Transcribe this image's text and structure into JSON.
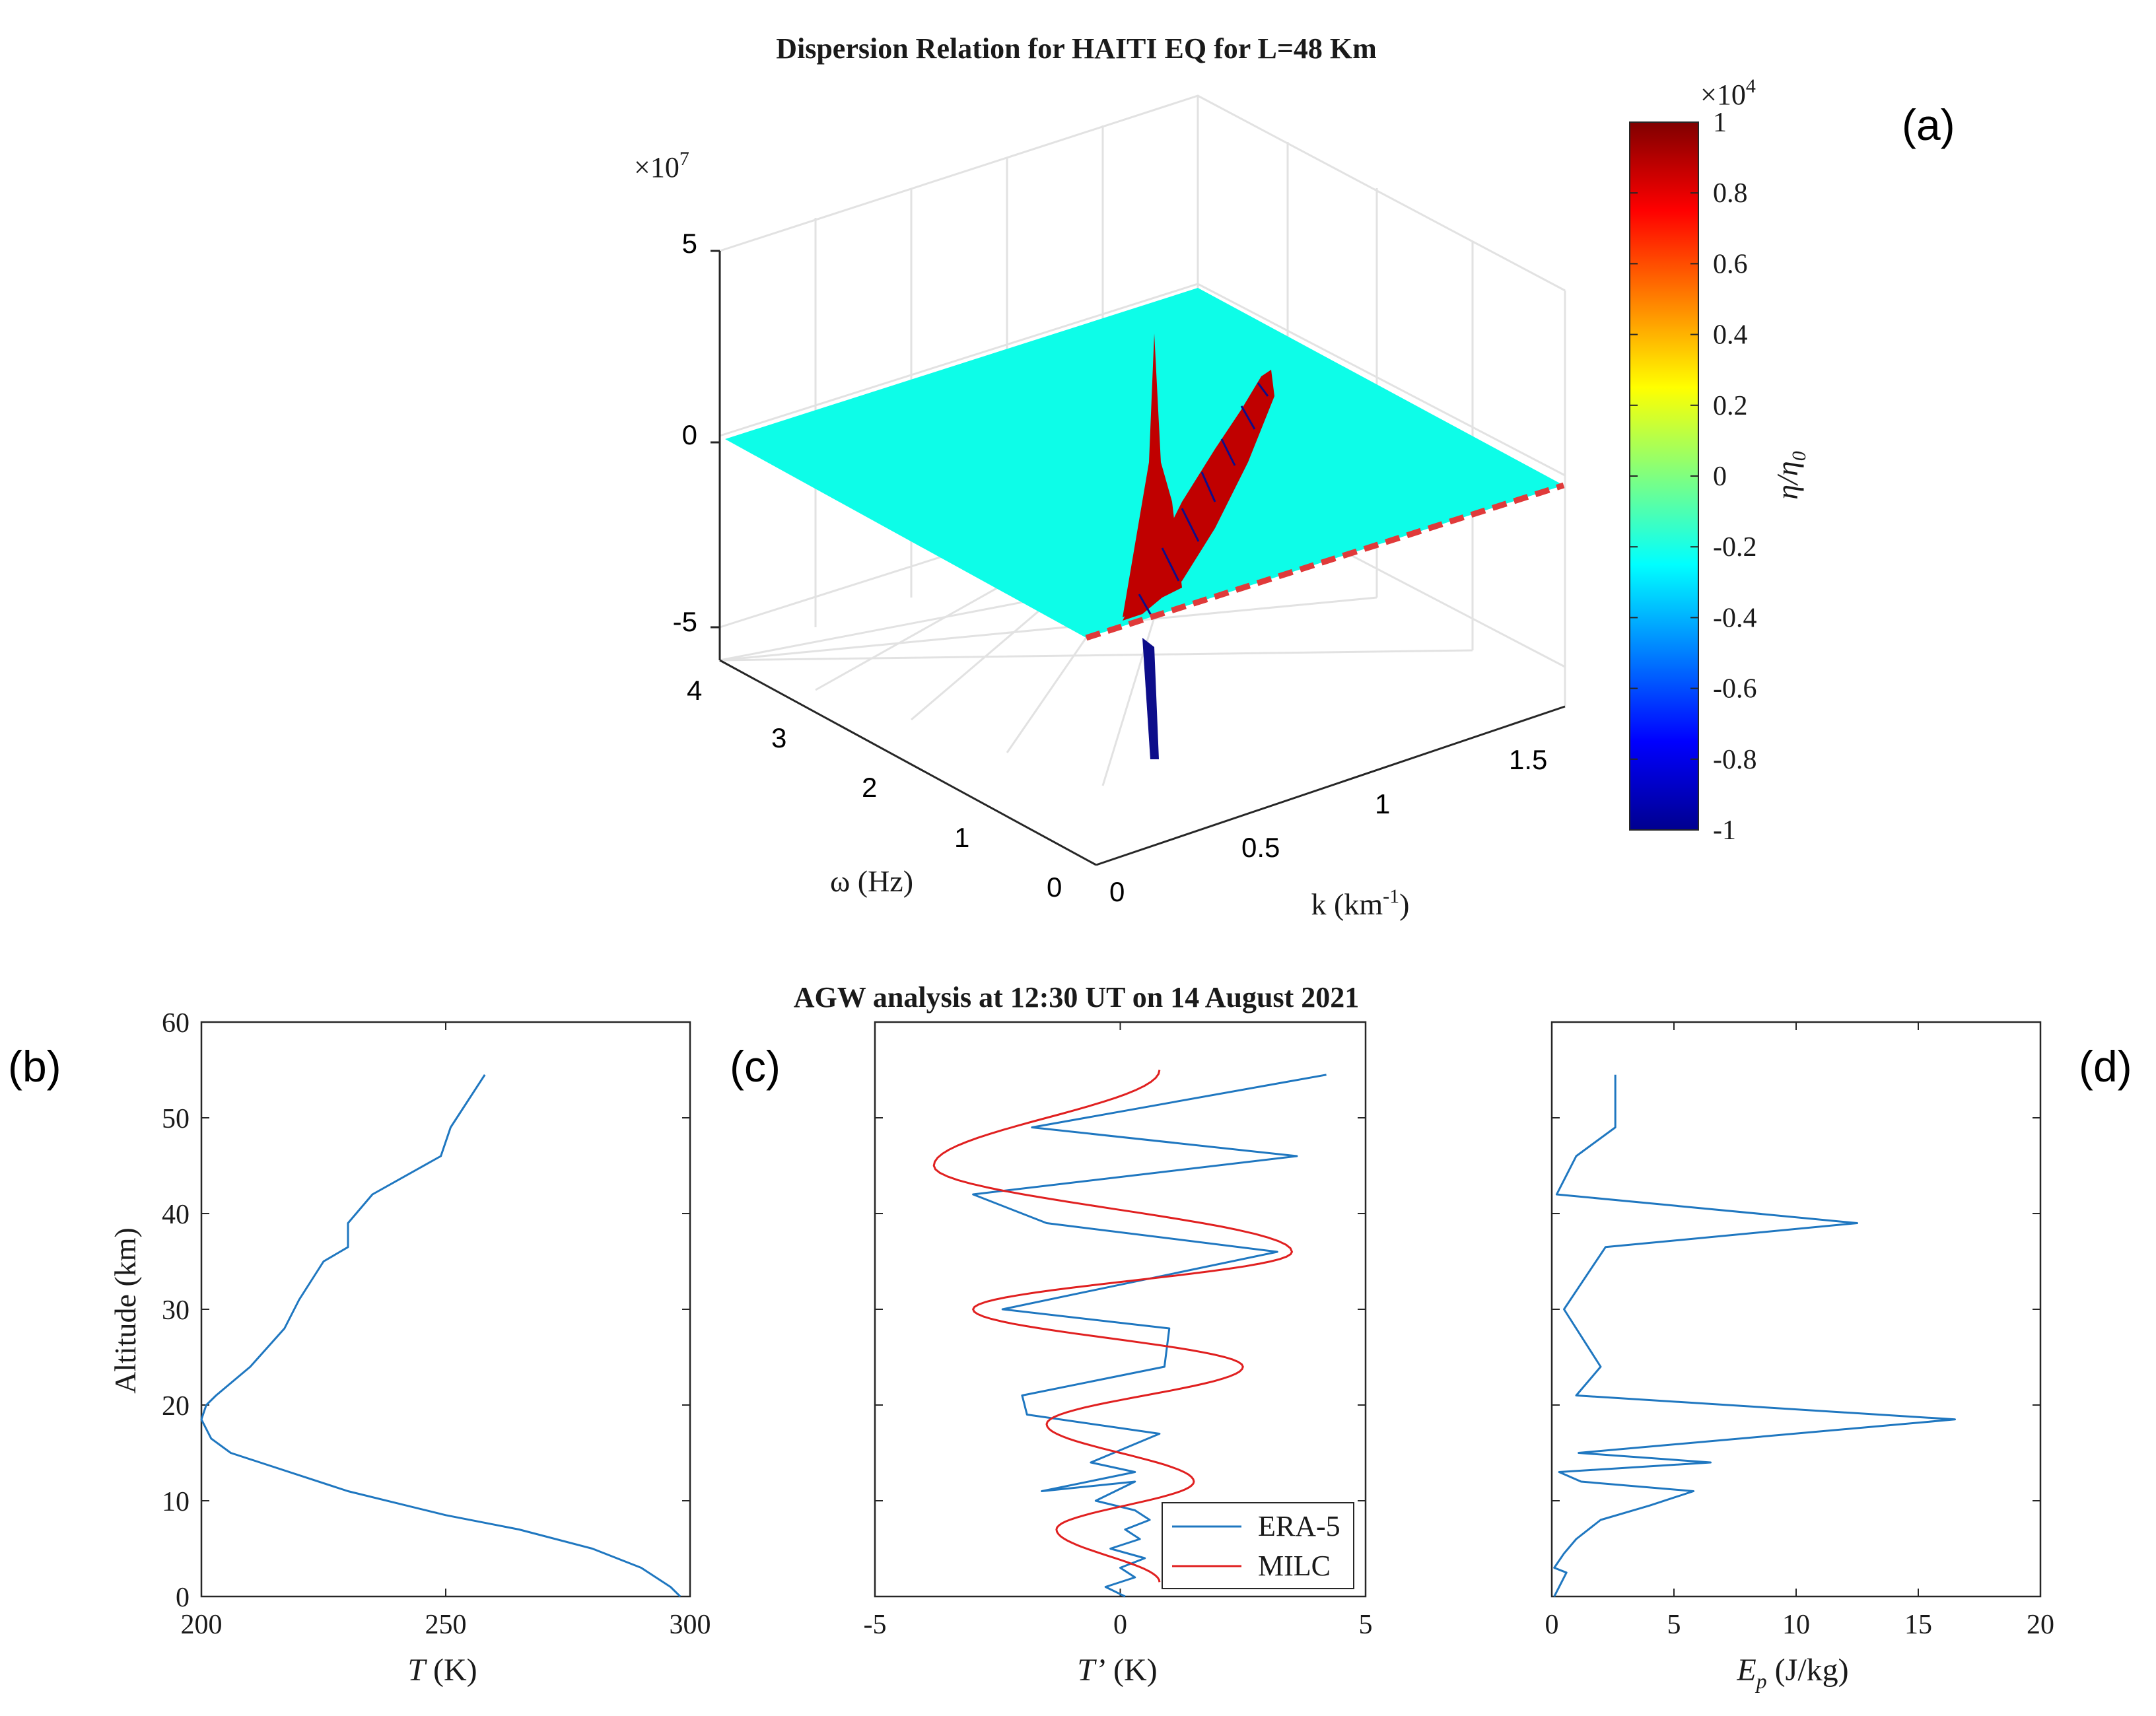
{
  "chart_data": [
    {
      "id": "a",
      "panel_label": "(a)",
      "type": "surface3d",
      "title": "Dispersion Relation for HAITI EQ for L=48 Km",
      "z_multiplier": "×10",
      "z_multiplier_exp": "7",
      "z_ticks": [
        "5",
        "0",
        "-5"
      ],
      "zlim": [
        -5,
        5
      ],
      "omega_ticks": [
        "4",
        "3",
        "2",
        "1",
        "0"
      ],
      "omega_label": "ω (Hz)",
      "omega_lim": [
        0,
        4
      ],
      "k_ticks": [
        "0",
        "0.5",
        "1",
        "1.5"
      ],
      "k_label_main": "k (km",
      "k_label_exp": "-1",
      "k_label_close": ")",
      "k_lim": [
        0,
        1.8
      ],
      "surface_color": "#0dfde8",
      "red_color": "#c00000",
      "dark_color": "#0d0d8a",
      "dashed_line_color": "#e03a3a",
      "colorbar": {
        "multiplier": "×10",
        "multiplier_exp": "4",
        "ticks": [
          "1",
          "0.8",
          "0.6",
          "0.4",
          "0.2",
          "0",
          "-0.2",
          "-0.4",
          "-0.6",
          "-0.8",
          "-1"
        ],
        "label_main": "η/η",
        "label_sub": "0",
        "range": [
          -1,
          1
        ]
      }
    },
    {
      "id": "b",
      "panel_label": "(b)",
      "type": "line",
      "suptitle": "AGW analysis at 12:30 UT on 14 August 2021",
      "xlabel_main": "T",
      "xlabel_unit": "(K)",
      "ylabel": "Altitude (km)",
      "xlim": [
        200,
        300
      ],
      "ylim": [
        0,
        60
      ],
      "xticks": [
        "200",
        "250",
        "300"
      ],
      "yticks": [
        "0",
        "10",
        "20",
        "30",
        "40",
        "50",
        "60"
      ],
      "series": [
        {
          "name": "T",
          "color": "#1f77c0",
          "x": [
            298,
            296,
            290,
            280,
            265,
            250,
            230,
            212,
            206,
            202,
            200,
            201,
            203,
            210,
            217,
            220,
            225,
            230,
            230,
            235,
            249,
            251,
            258
          ],
          "y": [
            0,
            1,
            3,
            5,
            7,
            8.5,
            11,
            14,
            15,
            16.5,
            18.5,
            20,
            21,
            24,
            28,
            31,
            35,
            36.5,
            39,
            42,
            46,
            49,
            54.5
          ]
        }
      ]
    },
    {
      "id": "c",
      "panel_label": "(c)",
      "type": "line",
      "xlabel_main": "T’",
      "xlabel_unit": "(K)",
      "xlim": [
        -5,
        5
      ],
      "ylim": [
        0,
        60
      ],
      "xticks": [
        "-5",
        "0",
        "5"
      ],
      "legend_position": "bottom-right",
      "series": [
        {
          "name": "ERA-5",
          "color": "#1f77c0",
          "x": [
            0.1,
            -0.3,
            0.3,
            0.0,
            0.5,
            -0.2,
            0.4,
            0.1,
            0.6,
            0.3,
            -0.5,
            0.3,
            -1.6,
            0.3,
            -0.6,
            0.8,
            -1.9,
            -2.0,
            0.9,
            1.0,
            -2.4,
            3.2,
            -1.5,
            -3.0,
            3.6,
            -1.8,
            4.2
          ],
          "y": [
            0,
            1,
            2,
            3,
            4,
            5,
            6,
            7,
            8,
            9,
            10,
            12,
            11,
            13,
            14,
            17,
            19,
            21,
            24,
            28,
            30,
            36,
            39,
            42,
            46,
            49,
            54.5
          ]
        },
        {
          "name": "MILC",
          "color": "#e02020",
          "x": [
            0.8,
            -1.3,
            1.5,
            -1.5,
            2.5,
            -3.0,
            3.5,
            -3.8,
            0.8
          ],
          "y": [
            1.5,
            7,
            12,
            18,
            24,
            30,
            36,
            45,
            55
          ]
        }
      ]
    },
    {
      "id": "d",
      "panel_label": "(d)",
      "type": "line",
      "xlabel_main": "E",
      "xlabel_sub": "p",
      "xlabel_unit": "(J/kg)",
      "xlim": [
        0,
        20
      ],
      "ylim": [
        0,
        60
      ],
      "xticks": [
        "0",
        "5",
        "10",
        "15",
        "20"
      ],
      "series": [
        {
          "name": "Ep",
          "color": "#1f77c0",
          "x": [
            0.1,
            0.6,
            0.1,
            0.5,
            1.0,
            2.0,
            4.0,
            5.8,
            1.2,
            0.3,
            6.5,
            1.1,
            16.5,
            1.0,
            2.0,
            0.5,
            2.2,
            12.5,
            0.2,
            1.0,
            2.6,
            2.6
          ],
          "y": [
            0,
            2.5,
            3,
            4.5,
            6,
            8,
            9.5,
            11,
            12,
            13,
            14,
            15,
            18.5,
            21,
            24,
            30,
            36.5,
            39,
            42,
            46,
            49,
            54.5
          ]
        }
      ]
    }
  ]
}
